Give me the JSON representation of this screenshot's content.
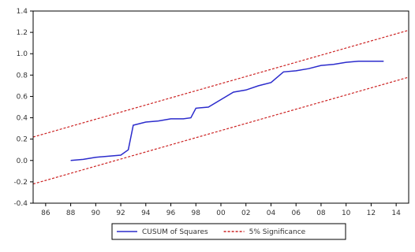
{
  "chart_data": {
    "type": "line",
    "title": "",
    "xlabel": "",
    "ylabel": "",
    "x_ticks": [
      "86",
      "88",
      "90",
      "92",
      "94",
      "96",
      "98",
      "00",
      "02",
      "04",
      "06",
      "08",
      "10",
      "12",
      "14"
    ],
    "y_ticks": [
      "1.4",
      "1.2",
      "1.0",
      "0.8",
      "0.6",
      "0.4",
      "0.2",
      "0.0",
      "-0.2",
      "-0.4"
    ],
    "xlim": [
      1985,
      2015
    ],
    "ylim": [
      -0.4,
      1.4
    ],
    "grid": false,
    "legend_position": "bottom-center",
    "series": [
      {
        "name": "CUSUM of Squares",
        "color": "#2b2bcc",
        "style": "solid",
        "points": [
          [
            1988,
            0.0
          ],
          [
            1989,
            0.01
          ],
          [
            1990,
            0.03
          ],
          [
            1991,
            0.04
          ],
          [
            1992,
            0.05
          ],
          [
            1992.6,
            0.1
          ],
          [
            1993,
            0.33
          ],
          [
            1994,
            0.36
          ],
          [
            1995,
            0.37
          ],
          [
            1996,
            0.39
          ],
          [
            1997,
            0.39
          ],
          [
            1997.6,
            0.4
          ],
          [
            1998,
            0.49
          ],
          [
            1999,
            0.5
          ],
          [
            2000,
            0.57
          ],
          [
            2001,
            0.64
          ],
          [
            2002,
            0.66
          ],
          [
            2003,
            0.7
          ],
          [
            2004,
            0.73
          ],
          [
            2005,
            0.83
          ],
          [
            2006,
            0.84
          ],
          [
            2007,
            0.86
          ],
          [
            2008,
            0.89
          ],
          [
            2009,
            0.9
          ],
          [
            2010,
            0.92
          ],
          [
            2011,
            0.93
          ],
          [
            2012,
            0.93
          ],
          [
            2013,
            0.93
          ]
        ]
      },
      {
        "name": "5% Significance",
        "color": "#cc2222",
        "style": "dashed",
        "points": [
          [
            1985,
            0.22
          ],
          [
            2015,
            1.22
          ]
        ]
      },
      {
        "name": "5% Significance",
        "color": "#cc2222",
        "style": "dashed",
        "points": [
          [
            1985,
            -0.22
          ],
          [
            2015,
            0.78
          ]
        ]
      }
    ],
    "legend": [
      {
        "label": "CUSUM of Squares",
        "color": "#2b2bcc",
        "style": "solid"
      },
      {
        "label": "5% Significance",
        "color": "#cc2222",
        "style": "dashed"
      }
    ]
  }
}
